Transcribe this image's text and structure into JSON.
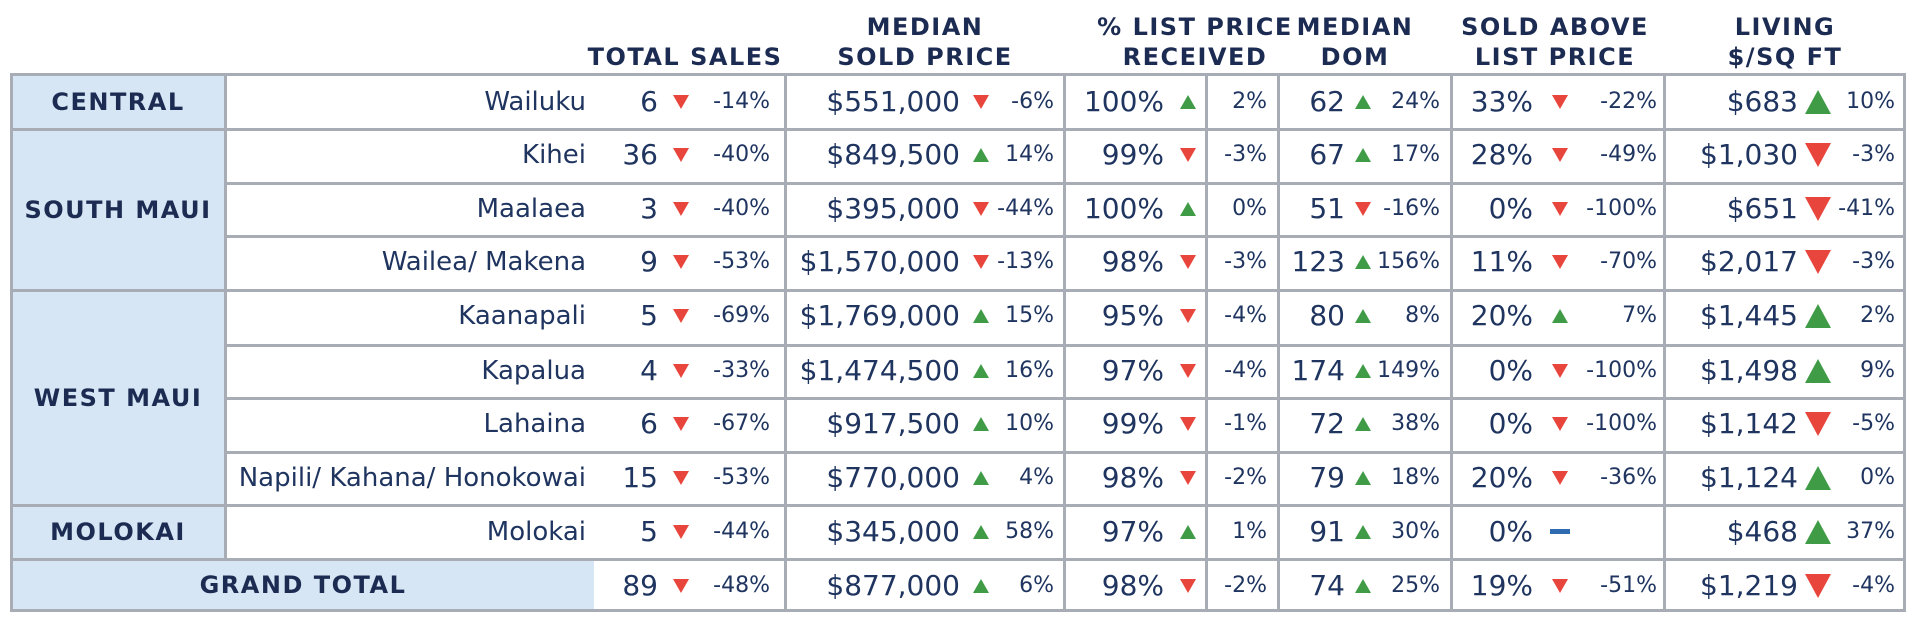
{
  "headers": {
    "total_sales": [
      "TOTAL SALES"
    ],
    "median_sold_price": [
      "MEDIAN",
      "SOLD PRICE"
    ],
    "list_price_received": [
      "% LIST PRICE",
      "RECEIVED"
    ],
    "median_dom": [
      "MEDIAN",
      "DOM"
    ],
    "sold_above_list": [
      "SOLD ABOVE",
      "LIST PRICE"
    ],
    "living_sqft": [
      "LIVING",
      "$/SQ FT"
    ]
  },
  "regions": {
    "central": "CENTRAL",
    "south_maui": "SOUTH MAUI",
    "west_maui": "WEST MAUI",
    "molokai": "MOLOKAI",
    "grand_total": "GRAND TOTAL"
  },
  "rows": [
    {
      "area": "Wailuku",
      "sales": "6",
      "sales_dir": "down",
      "sales_chg": "-14%",
      "price": "$551,000",
      "price_dir": "down",
      "price_chg": "-6%",
      "lp": "100%",
      "lp_dir": "up",
      "lp_chg": "2%",
      "dom": "62",
      "dom_dir": "up",
      "dom_chg": "24%",
      "above": "33%",
      "above_dir": "down",
      "above_chg": "-22%",
      "sqft": "$683",
      "sqft_dir": "up",
      "sqft_chg": "10%"
    },
    {
      "area": "Kihei",
      "sales": "36",
      "sales_dir": "down",
      "sales_chg": "-40%",
      "price": "$849,500",
      "price_dir": "up",
      "price_chg": "14%",
      "lp": "99%",
      "lp_dir": "down",
      "lp_chg": "-3%",
      "dom": "67",
      "dom_dir": "up",
      "dom_chg": "17%",
      "above": "28%",
      "above_dir": "down",
      "above_chg": "-49%",
      "sqft": "$1,030",
      "sqft_dir": "down",
      "sqft_chg": "-3%"
    },
    {
      "area": "Maalaea",
      "sales": "3",
      "sales_dir": "down",
      "sales_chg": "-40%",
      "price": "$395,000",
      "price_dir": "down",
      "price_chg": "-44%",
      "lp": "100%",
      "lp_dir": "up",
      "lp_chg": "0%",
      "dom": "51",
      "dom_dir": "down",
      "dom_chg": "-16%",
      "above": "0%",
      "above_dir": "down",
      "above_chg": "-100%",
      "sqft": "$651",
      "sqft_dir": "down",
      "sqft_chg": "-41%"
    },
    {
      "area": "Wailea/ Makena",
      "sales": "9",
      "sales_dir": "down",
      "sales_chg": "-53%",
      "price": "$1,570,000",
      "price_dir": "down",
      "price_chg": "-13%",
      "lp": "98%",
      "lp_dir": "down",
      "lp_chg": "-3%",
      "dom": "123",
      "dom_dir": "up",
      "dom_chg": "156%",
      "above": "11%",
      "above_dir": "down",
      "above_chg": "-70%",
      "sqft": "$2,017",
      "sqft_dir": "down",
      "sqft_chg": "-3%"
    },
    {
      "area": "Kaanapali",
      "sales": "5",
      "sales_dir": "down",
      "sales_chg": "-69%",
      "price": "$1,769,000",
      "price_dir": "up",
      "price_chg": "15%",
      "lp": "95%",
      "lp_dir": "down",
      "lp_chg": "-4%",
      "dom": "80",
      "dom_dir": "up",
      "dom_chg": "8%",
      "above": "20%",
      "above_dir": "up",
      "above_chg": "7%",
      "sqft": "$1,445",
      "sqft_dir": "up",
      "sqft_chg": "2%"
    },
    {
      "area": "Kapalua",
      "sales": "4",
      "sales_dir": "down",
      "sales_chg": "-33%",
      "price": "$1,474,500",
      "price_dir": "up",
      "price_chg": "16%",
      "lp": "97%",
      "lp_dir": "down",
      "lp_chg": "-4%",
      "dom": "174",
      "dom_dir": "up",
      "dom_chg": "149%",
      "above": "0%",
      "above_dir": "down",
      "above_chg": "-100%",
      "sqft": "$1,498",
      "sqft_dir": "up",
      "sqft_chg": "9%"
    },
    {
      "area": "Lahaina",
      "sales": "6",
      "sales_dir": "down",
      "sales_chg": "-67%",
      "price": "$917,500",
      "price_dir": "up",
      "price_chg": "10%",
      "lp": "99%",
      "lp_dir": "down",
      "lp_chg": "-1%",
      "dom": "72",
      "dom_dir": "up",
      "dom_chg": "38%",
      "above": "0%",
      "above_dir": "down",
      "above_chg": "-100%",
      "sqft": "$1,142",
      "sqft_dir": "down",
      "sqft_chg": "-5%"
    },
    {
      "area": "Napili/ Kahana/ Honokowai",
      "sales": "15",
      "sales_dir": "down",
      "sales_chg": "-53%",
      "price": "$770,000",
      "price_dir": "up",
      "price_chg": "4%",
      "lp": "98%",
      "lp_dir": "down",
      "lp_chg": "-2%",
      "dom": "79",
      "dom_dir": "up",
      "dom_chg": "18%",
      "above": "20%",
      "above_dir": "down",
      "above_chg": "-36%",
      "sqft": "$1,124",
      "sqft_dir": "up",
      "sqft_chg": "0%"
    },
    {
      "area": "Molokai",
      "sales": "5",
      "sales_dir": "down",
      "sales_chg": "-44%",
      "price": "$345,000",
      "price_dir": "up",
      "price_chg": "58%",
      "lp": "97%",
      "lp_dir": "up",
      "lp_chg": "1%",
      "dom": "91",
      "dom_dir": "up",
      "dom_chg": "30%",
      "above": "0%",
      "above_dir": "flat",
      "above_chg": "",
      "sqft": "$468",
      "sqft_dir": "up",
      "sqft_chg": "37%"
    },
    {
      "area": "",
      "sales": "89",
      "sales_dir": "down",
      "sales_chg": "-48%",
      "price": "$877,000",
      "price_dir": "up",
      "price_chg": "6%",
      "lp": "98%",
      "lp_dir": "down",
      "lp_chg": "-2%",
      "dom": "74",
      "dom_dir": "up",
      "dom_chg": "25%",
      "above": "19%",
      "above_dir": "down",
      "above_chg": "-51%",
      "sqft": "$1,219",
      "sqft_dir": "down",
      "sqft_chg": "-4%"
    }
  ],
  "colors": {
    "up": "#3f9b45",
    "down": "#e8453c",
    "flat": "#2f6bb0",
    "region_bg": "#d7e6f4",
    "text": "#1c2b52"
  }
}
